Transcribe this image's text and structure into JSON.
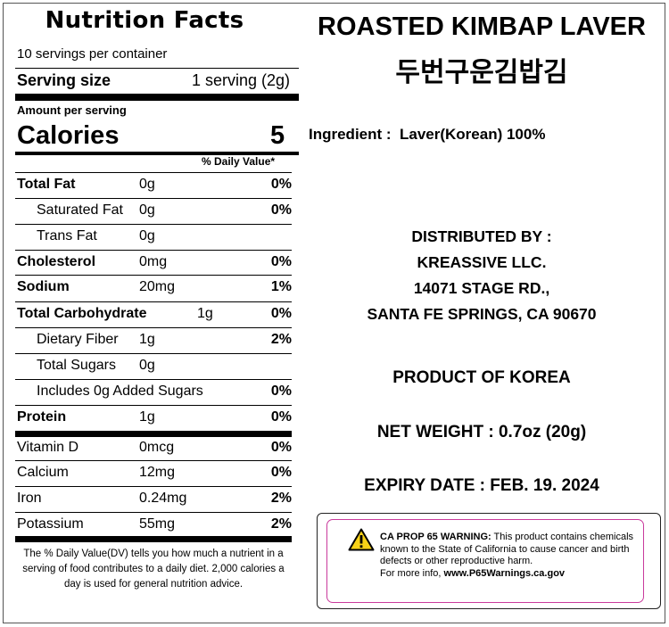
{
  "nutrition": {
    "title": "Nutrition Facts",
    "servings_per_container": "10 servings per container",
    "serving_size_label": "Serving size",
    "serving_size_value": "1 serving (2g)",
    "amount_per_serving": "Amount per serving",
    "calories_label": "Calories",
    "calories_value": "5",
    "daily_value_header": "% Daily Value*",
    "rows": [
      {
        "name": "Total Fat",
        "amount": "0g",
        "dv": "0%"
      },
      {
        "name": "Saturated Fat",
        "amount": "0g",
        "dv": "0%"
      },
      {
        "name": "Trans Fat",
        "amount": "0g",
        "dv": ""
      },
      {
        "name": "Cholesterol",
        "amount": "0mg",
        "dv": "0%"
      },
      {
        "name": "Sodium",
        "amount": "20mg",
        "dv": "1%"
      },
      {
        "name": "Total Carbohydrate",
        "amount": "1g",
        "dv": "0%"
      },
      {
        "name": "Dietary Fiber",
        "amount": "1g",
        "dv": "2%"
      },
      {
        "name": "Total Sugars",
        "amount": "0g",
        "dv": ""
      },
      {
        "name": "Includes 0g Added Sugars",
        "amount": "",
        "dv": "0%"
      },
      {
        "name": "Protein",
        "amount": "1g",
        "dv": "0%"
      },
      {
        "name": "Vitamin D",
        "amount": "0mcg",
        "dv": "0%"
      },
      {
        "name": "Calcium",
        "amount": "12mg",
        "dv": "0%"
      },
      {
        "name": "Iron",
        "amount": "0.24mg",
        "dv": "2%"
      },
      {
        "name": "Potassium",
        "amount": "55mg",
        "dv": "2%"
      }
    ],
    "footnote": "The % Daily Value(DV) tells you how much a nutrient in a serving of food contributes to a daily diet. 2,000 calories a day is used for general nutrition advice."
  },
  "product": {
    "title_en": "ROASTED KIMBAP LAVER",
    "title_ko": "두번구운김밥김",
    "ingredient": "Ingredient :  Laver(Korean) 100%",
    "distributed_by_label": "DISTRIBUTED BY :",
    "distributor_name": "KREASSIVE LLC.",
    "distributor_address1": "14071 STAGE RD.,",
    "distributor_address2": "SANTA FE SPRINGS, CA 90670",
    "origin": "PRODUCT OF KOREA",
    "net_weight": "NET WEIGHT : 0.7oz (20g)",
    "expiry": "EXPIRY DATE : FEB. 19. 2024"
  },
  "warning": {
    "icon": "warning-triangle-icon",
    "heading": "CA PROP 65 WARNING:",
    "body": " This product contains chemicals known to the State of California to cause cancer and birth defects or other reproductive harm.",
    "more_info_prefix": "For more info, ",
    "link": "www.P65Warnings.ca.gov",
    "border_color": "#c93a9c"
  }
}
